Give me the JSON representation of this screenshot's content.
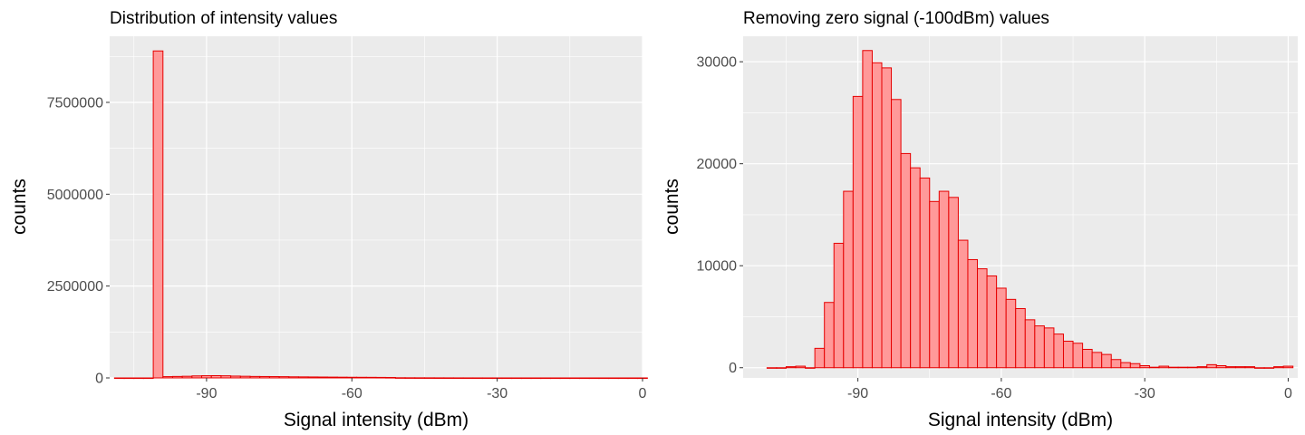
{
  "colors": {
    "panel_bg": "#ebebeb",
    "grid_major": "#ffffff",
    "bar_fill": "#ff9999",
    "bar_stroke": "#e60000",
    "tick_text": "#4d4d4d",
    "tick_mark": "#333333"
  },
  "chart_data": [
    {
      "type": "bar",
      "title": "Distribution of intensity values",
      "xlabel": "Signal intensity (dBm)",
      "ylabel": "counts",
      "grid": true,
      "xlim": [
        -110,
        0
      ],
      "ylim": [
        0,
        9300000
      ],
      "x_ticks": [
        -90,
        -60,
        -30,
        0
      ],
      "y_ticks": [
        0,
        2500000,
        5000000,
        7500000
      ],
      "x_tick_labels": [
        "-90",
        "-60",
        "-30",
        "0"
      ],
      "y_tick_labels": [
        "0",
        "2500000",
        "5000000",
        "7500000"
      ],
      "bin_width": 2,
      "bins": [
        {
          "x": -108,
          "value": 0
        },
        {
          "x": -106,
          "value": 0
        },
        {
          "x": -104,
          "value": 0
        },
        {
          "x": -102,
          "value": 0
        },
        {
          "x": -100,
          "value": 8900000
        },
        {
          "x": -98,
          "value": 35000
        },
        {
          "x": -96,
          "value": 40000
        },
        {
          "x": -94,
          "value": 45000
        },
        {
          "x": -92,
          "value": 55000
        },
        {
          "x": -90,
          "value": 60000
        },
        {
          "x": -88,
          "value": 62000
        },
        {
          "x": -86,
          "value": 58000
        },
        {
          "x": -84,
          "value": 50000
        },
        {
          "x": -82,
          "value": 45000
        },
        {
          "x": -80,
          "value": 40000
        },
        {
          "x": -78,
          "value": 38000
        },
        {
          "x": -76,
          "value": 36000
        },
        {
          "x": -74,
          "value": 34000
        },
        {
          "x": -72,
          "value": 30000
        },
        {
          "x": -70,
          "value": 28000
        },
        {
          "x": -68,
          "value": 26000
        },
        {
          "x": -66,
          "value": 24000
        },
        {
          "x": -64,
          "value": 22000
        },
        {
          "x": -62,
          "value": 20000
        },
        {
          "x": -60,
          "value": 18000
        },
        {
          "x": -58,
          "value": 17000
        },
        {
          "x": -56,
          "value": 16000
        },
        {
          "x": -54,
          "value": 14000
        },
        {
          "x": -52,
          "value": 12000
        },
        {
          "x": -50,
          "value": 5000
        },
        {
          "x": -48,
          "value": 4000
        },
        {
          "x": -46,
          "value": 3500
        },
        {
          "x": -44,
          "value": 3000
        },
        {
          "x": -42,
          "value": 2500
        },
        {
          "x": -40,
          "value": 2000
        },
        {
          "x": -38,
          "value": 1500
        },
        {
          "x": -36,
          "value": 1200
        },
        {
          "x": -34,
          "value": 1000
        },
        {
          "x": -32,
          "value": 800
        },
        {
          "x": -30,
          "value": 600
        },
        {
          "x": -28,
          "value": 500
        },
        {
          "x": -26,
          "value": 400
        },
        {
          "x": -24,
          "value": 300
        },
        {
          "x": -22,
          "value": 300
        },
        {
          "x": -20,
          "value": 300
        },
        {
          "x": -18,
          "value": 300
        },
        {
          "x": -16,
          "value": 300
        },
        {
          "x": -14,
          "value": 300
        },
        {
          "x": -12,
          "value": 300
        },
        {
          "x": -10,
          "value": 300
        },
        {
          "x": -8,
          "value": 300
        },
        {
          "x": -6,
          "value": 300
        },
        {
          "x": -4,
          "value": 300
        },
        {
          "x": -2,
          "value": 300
        },
        {
          "x": 0,
          "value": 300
        }
      ]
    },
    {
      "type": "bar",
      "title": "Removing zero signal (-100dBm) values",
      "xlabel": "Signal intensity (dBm)",
      "ylabel": "counts",
      "grid": true,
      "xlim": [
        -114,
        2
      ],
      "ylim": [
        -1000,
        32500
      ],
      "x_ticks": [
        -90,
        -60,
        -30,
        0
      ],
      "y_ticks": [
        0,
        10000,
        20000,
        30000
      ],
      "x_tick_labels": [
        "-90",
        "-60",
        "-30",
        "0"
      ],
      "y_tick_labels": [
        "0",
        "10000",
        "20000",
        "30000"
      ],
      "bin_width": 2,
      "bins": [
        {
          "x": -108,
          "value": 0
        },
        {
          "x": -106,
          "value": 0
        },
        {
          "x": -104,
          "value": 100
        },
        {
          "x": -102,
          "value": 150
        },
        {
          "x": -100,
          "value": 0
        },
        {
          "x": -98,
          "value": 1900
        },
        {
          "x": -96,
          "value": 6400
        },
        {
          "x": -94,
          "value": 12200
        },
        {
          "x": -92,
          "value": 17300
        },
        {
          "x": -90,
          "value": 26600
        },
        {
          "x": -88,
          "value": 31100
        },
        {
          "x": -86,
          "value": 29900
        },
        {
          "x": -84,
          "value": 29400
        },
        {
          "x": -82,
          "value": 26300
        },
        {
          "x": -80,
          "value": 21000
        },
        {
          "x": -78,
          "value": 19600
        },
        {
          "x": -76,
          "value": 18600
        },
        {
          "x": -74,
          "value": 16300
        },
        {
          "x": -72,
          "value": 17300
        },
        {
          "x": -70,
          "value": 16700
        },
        {
          "x": -68,
          "value": 12500
        },
        {
          "x": -66,
          "value": 10600
        },
        {
          "x": -64,
          "value": 9700
        },
        {
          "x": -62,
          "value": 9000
        },
        {
          "x": -60,
          "value": 7800
        },
        {
          "x": -58,
          "value": 6700
        },
        {
          "x": -56,
          "value": 5800
        },
        {
          "x": -54,
          "value": 4700
        },
        {
          "x": -52,
          "value": 4100
        },
        {
          "x": -50,
          "value": 3900
        },
        {
          "x": -48,
          "value": 3300
        },
        {
          "x": -46,
          "value": 2600
        },
        {
          "x": -44,
          "value": 2400
        },
        {
          "x": -42,
          "value": 1800
        },
        {
          "x": -40,
          "value": 1500
        },
        {
          "x": -38,
          "value": 1300
        },
        {
          "x": -36,
          "value": 800
        },
        {
          "x": -34,
          "value": 500
        },
        {
          "x": -32,
          "value": 400
        },
        {
          "x": -30,
          "value": 200
        },
        {
          "x": -28,
          "value": 50
        },
        {
          "x": -26,
          "value": 150
        },
        {
          "x": -24,
          "value": 50
        },
        {
          "x": -22,
          "value": 50
        },
        {
          "x": -20,
          "value": 50
        },
        {
          "x": -18,
          "value": 100
        },
        {
          "x": -16,
          "value": 300
        },
        {
          "x": -14,
          "value": 200
        },
        {
          "x": -12,
          "value": 100
        },
        {
          "x": -10,
          "value": 100
        },
        {
          "x": -8,
          "value": 100
        },
        {
          "x": -6,
          "value": 0
        },
        {
          "x": -4,
          "value": 0
        },
        {
          "x": -2,
          "value": 100
        },
        {
          "x": 0,
          "value": 150
        }
      ]
    }
  ]
}
